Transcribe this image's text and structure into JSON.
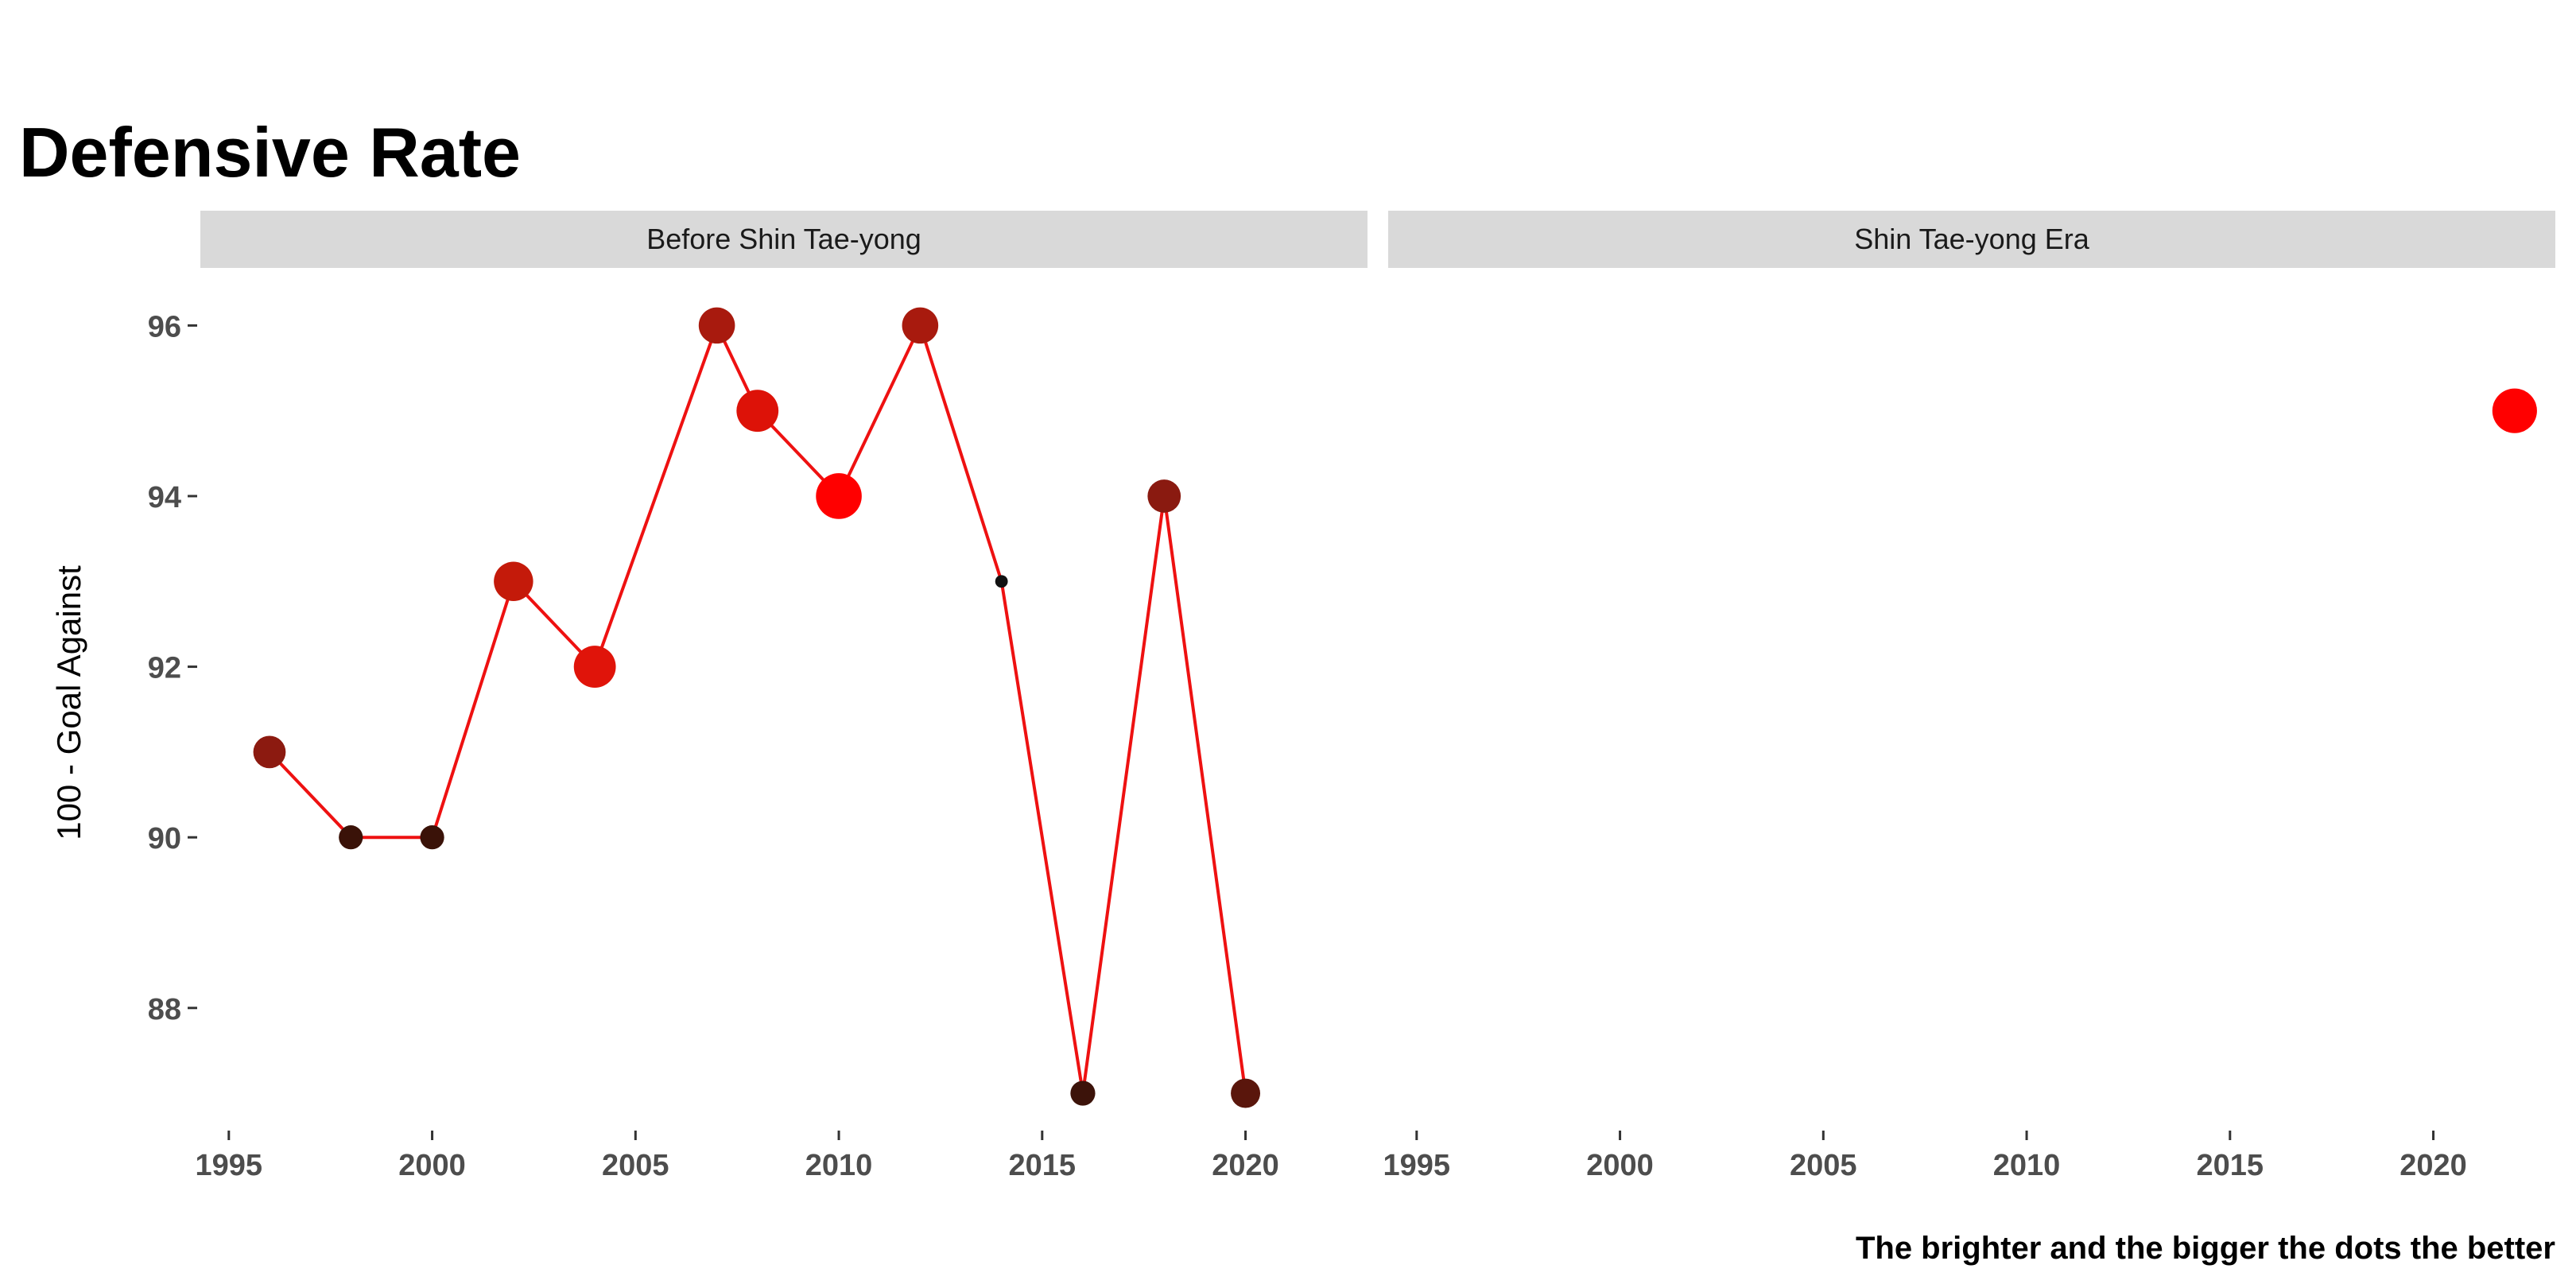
{
  "chart_data": {
    "type": "line",
    "title": "Defensive Rate",
    "ylabel": "100 - Goal Against",
    "xlabel": "",
    "caption": "The brighter and the bigger the dots the better",
    "ylim": [
      86.6,
      96.6
    ],
    "y_ticks": [
      88,
      90,
      92,
      94,
      96
    ],
    "xlim": [
      1994.3,
      2023.0
    ],
    "x_ticks": [
      1995,
      2000,
      2005,
      2010,
      2015,
      2020
    ],
    "grid": false,
    "legend": "none",
    "line_color": "#ee1111",
    "strip_color": "#d9d9d9",
    "panels": [
      {
        "name": "Before Shin Tae-yong",
        "connected": true,
        "points": [
          {
            "x": 1996,
            "y": 91,
            "size": 0.6,
            "color": "#8c1a10"
          },
          {
            "x": 1998,
            "y": 90,
            "size": 0.38,
            "color": "#3a1208"
          },
          {
            "x": 2000,
            "y": 90,
            "size": 0.38,
            "color": "#3a1208"
          },
          {
            "x": 2002,
            "y": 93,
            "size": 0.78,
            "color": "#c41a0a"
          },
          {
            "x": 2004,
            "y": 92,
            "size": 0.85,
            "color": "#e0140a"
          },
          {
            "x": 2007,
            "y": 96,
            "size": 0.7,
            "color": "#a81a0e"
          },
          {
            "x": 2008,
            "y": 95,
            "size": 0.85,
            "color": "#dd1208"
          },
          {
            "x": 2010,
            "y": 94,
            "size": 0.95,
            "color": "#ff0000"
          },
          {
            "x": 2012,
            "y": 96,
            "size": 0.7,
            "color": "#a81a0e"
          },
          {
            "x": 2014,
            "y": 93,
            "size": 0.08,
            "color": "#111111"
          },
          {
            "x": 2016,
            "y": 87,
            "size": 0.4,
            "color": "#3c130a"
          },
          {
            "x": 2018,
            "y": 94,
            "size": 0.62,
            "color": "#8a1a10"
          },
          {
            "x": 2020,
            "y": 87,
            "size": 0.52,
            "color": "#5a160c"
          }
        ]
      },
      {
        "name": "Shin Tae-yong Era",
        "connected": false,
        "points": [
          {
            "x": 2022,
            "y": 95,
            "size": 0.92,
            "color": "#ff0000"
          }
        ]
      }
    ]
  }
}
